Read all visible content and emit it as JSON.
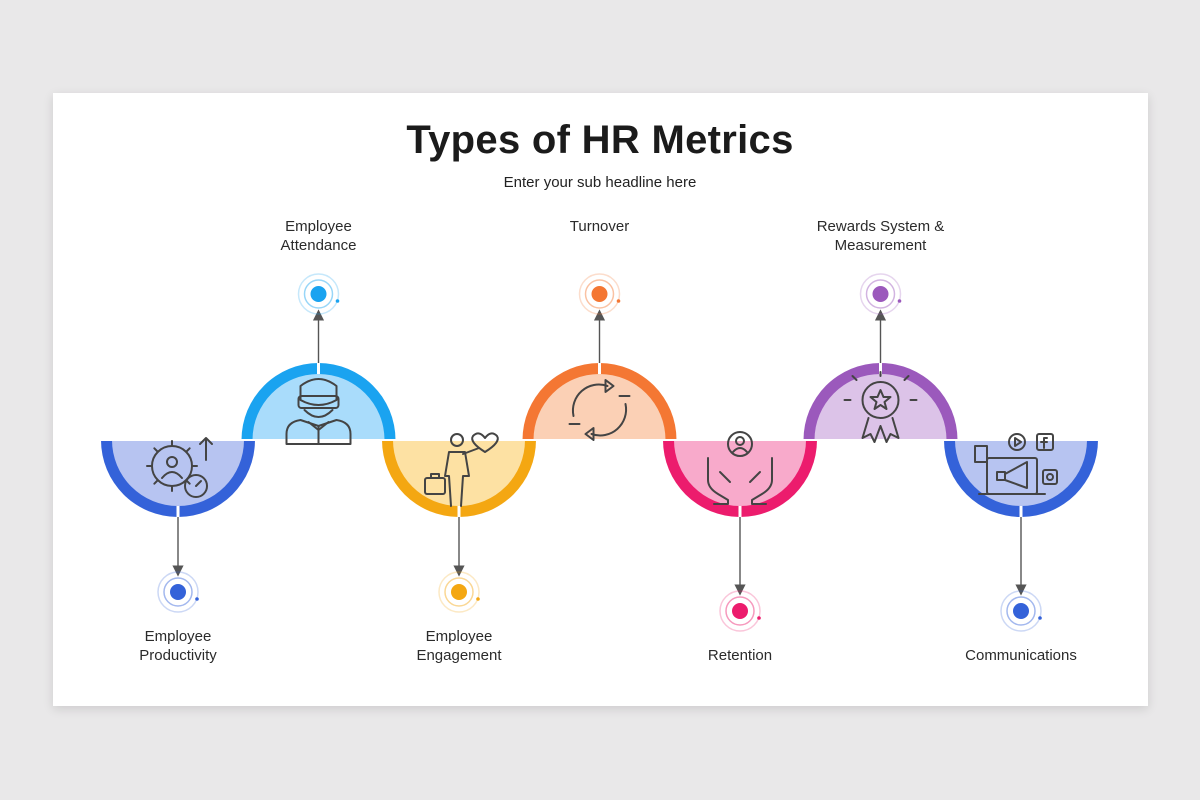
{
  "title": "Types of HR Metrics",
  "subtitle": "Enter your sub headline here",
  "items": [
    {
      "label_lines": [
        "Employee",
        "Productivity"
      ],
      "position": "below",
      "color": "#3462d9",
      "fill": "#b7c4f1",
      "icon": "gear-person-gauge-icon"
    },
    {
      "label_lines": [
        "Employee",
        "Attendance"
      ],
      "position": "above",
      "color": "#1aa3f0",
      "fill": "#a9dcfb",
      "icon": "vr-person-icon"
    },
    {
      "label_lines": [
        "Employee",
        "Engagement"
      ],
      "position": "below",
      "color": "#f4a712",
      "fill": "#fde1a3",
      "icon": "person-briefcase-heart-icon"
    },
    {
      "label_lines": [
        "Turnover"
      ],
      "position": "above",
      "color": "#f47733",
      "fill": "#fbd0b5",
      "icon": "refresh-arrows-icon"
    },
    {
      "label_lines": [
        "Retention"
      ],
      "position": "below",
      "color": "#ec1c6d",
      "fill": "#f8aacb",
      "icon": "hands-person-icon"
    },
    {
      "label_lines": [
        "Rewards System &",
        "Measurement"
      ],
      "position": "above",
      "color": "#9b59bc",
      "fill": "#dcc3e8",
      "icon": "award-badge-icon"
    },
    {
      "label_lines": [
        "Communications"
      ],
      "position": "below",
      "color": "#3462d9",
      "fill": "#b7c4f1",
      "icon": "megaphone-media-icon"
    }
  ]
}
